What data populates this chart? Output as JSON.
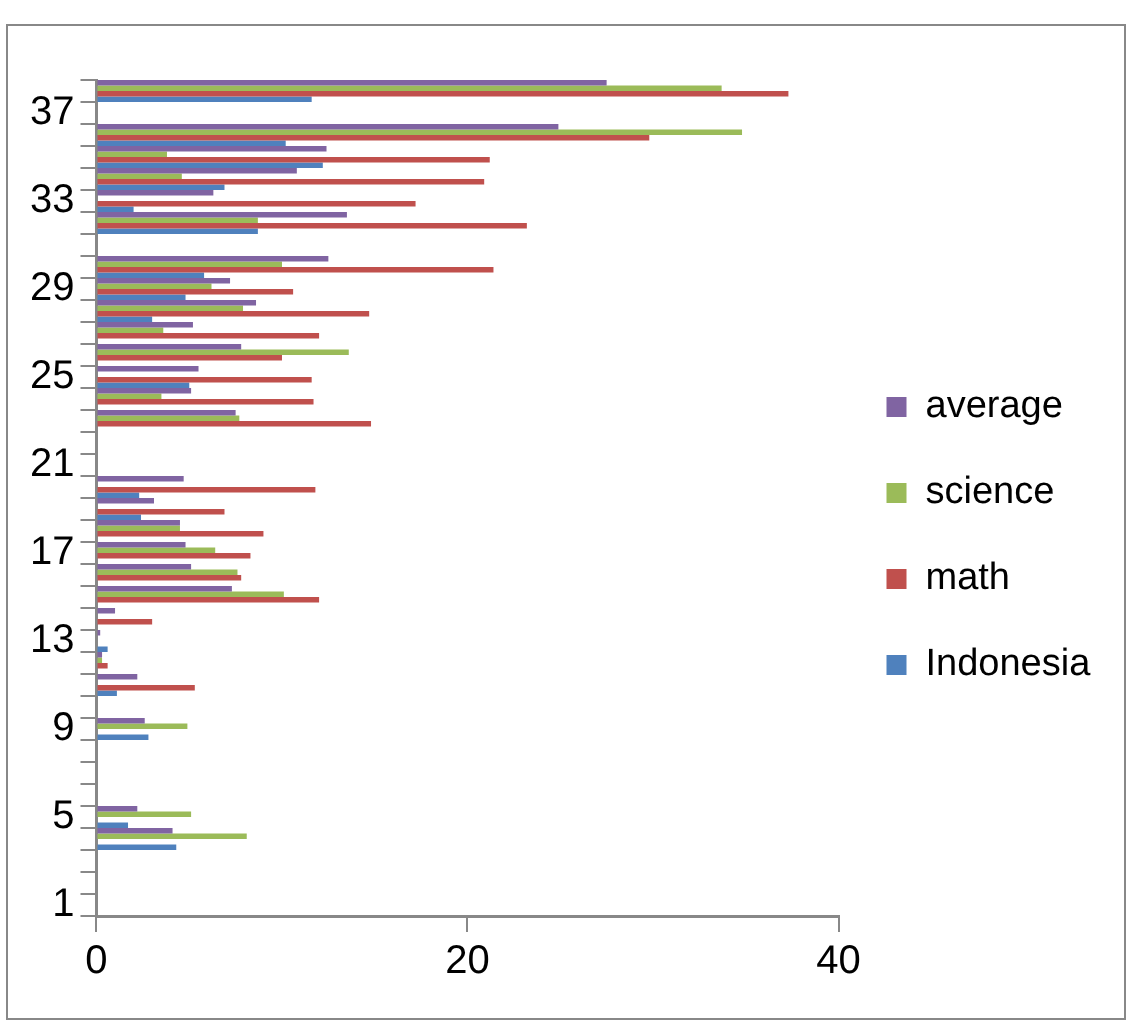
{
  "chart_data": {
    "type": "bar",
    "orientation": "horizontal",
    "categories": [
      null,
      "37",
      null,
      null,
      null,
      "33",
      null,
      null,
      null,
      "29",
      null,
      null,
      null,
      "25",
      null,
      null,
      null,
      "21",
      null,
      null,
      null,
      "17",
      null,
      null,
      null,
      "13",
      null,
      null,
      null,
      "9",
      null,
      null,
      null,
      "5",
      null,
      null,
      null,
      "1"
    ],
    "series": [
      {
        "name": "average",
        "color": "#8064a2",
        "values": [
          27.5,
          null,
          24.9,
          12.4,
          10.8,
          6.3,
          13.5,
          null,
          12.5,
          7.2,
          8.6,
          5.2,
          7.8,
          5.5,
          5.1,
          7.5,
          null,
          null,
          4.7,
          3.1,
          4.5,
          4.8,
          5.1,
          7.3,
          1.0,
          0.2,
          0.3,
          2.2,
          null,
          2.6,
          null,
          null,
          null,
          2.2,
          4.1,
          null,
          null,
          null
        ]
      },
      {
        "name": "science",
        "color": "#9bbb59",
        "values": [
          33.7,
          null,
          34.8,
          3.8,
          4.6,
          null,
          8.7,
          null,
          10.0,
          6.2,
          7.9,
          3.6,
          13.6,
          null,
          3.5,
          7.7,
          null,
          null,
          null,
          null,
          4.5,
          6.4,
          7.6,
          10.1,
          null,
          null,
          0.3,
          null,
          null,
          4.9,
          null,
          null,
          null,
          5.1,
          8.1,
          null,
          null,
          null
        ]
      },
      {
        "name": "math",
        "color": "#c0504d",
        "values": [
          37.3,
          null,
          29.8,
          21.2,
          20.9,
          17.2,
          23.2,
          null,
          21.4,
          10.6,
          14.7,
          12.0,
          10.0,
          11.6,
          11.7,
          14.8,
          null,
          null,
          11.8,
          6.9,
          9.0,
          8.3,
          7.8,
          12.0,
          3.0,
          null,
          0.6,
          5.3,
          null,
          null,
          null,
          null,
          null,
          null,
          null,
          null,
          null,
          null
        ]
      },
      {
        "name": "Indonesia",
        "color": "#4f81bd",
        "values": [
          11.6,
          null,
          10.2,
          12.2,
          6.9,
          2.0,
          8.7,
          null,
          5.8,
          4.8,
          3.0,
          null,
          null,
          5.0,
          null,
          null,
          null,
          null,
          2.3,
          2.4,
          null,
          null,
          null,
          null,
          null,
          0.6,
          null,
          1.1,
          null,
          2.8,
          null,
          null,
          null,
          1.7,
          4.3,
          null,
          null,
          null
        ]
      }
    ],
    "xlim": [
      0,
      40
    ],
    "xticks": [
      0,
      20,
      40
    ],
    "legend": "right"
  }
}
